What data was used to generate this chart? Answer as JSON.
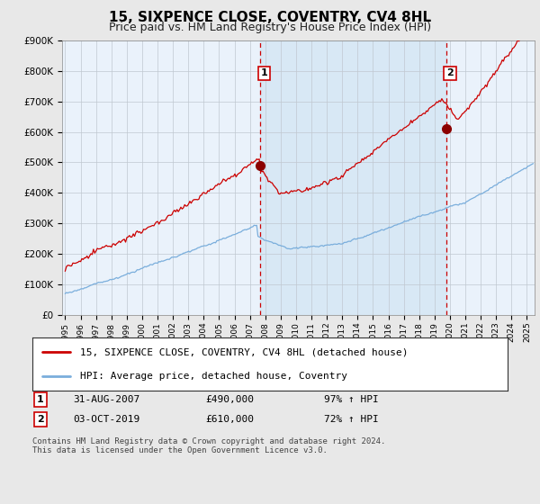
{
  "title": "15, SIXPENCE CLOSE, COVENTRY, CV4 8HL",
  "subtitle": "Price paid vs. HM Land Registry's House Price Index (HPI)",
  "ylabel_ticks": [
    "£0",
    "£100K",
    "£200K",
    "£300K",
    "£400K",
    "£500K",
    "£600K",
    "£700K",
    "£800K",
    "£900K"
  ],
  "ylim": [
    0,
    900000
  ],
  "xlim_start": 1994.8,
  "xlim_end": 2025.5,
  "line1_color": "#cc0000",
  "line2_color": "#7aaedc",
  "shade_color": "#ddeeff",
  "marker1_date": 2007.67,
  "marker1_value": 490000,
  "marker2_date": 2019.75,
  "marker2_value": 610000,
  "vline_color": "#cc0000",
  "legend_line1": "15, SIXPENCE CLOSE, COVENTRY, CV4 8HL (detached house)",
  "legend_line2": "HPI: Average price, detached house, Coventry",
  "table_row1_num": "1",
  "table_row1_date": "31-AUG-2007",
  "table_row1_price": "£490,000",
  "table_row1_hpi": "97% ↑ HPI",
  "table_row2_num": "2",
  "table_row2_date": "03-OCT-2019",
  "table_row2_price": "£610,000",
  "table_row2_hpi": "72% ↑ HPI",
  "footnote": "Contains HM Land Registry data © Crown copyright and database right 2024.\nThis data is licensed under the Open Government Licence v3.0.",
  "bg_color": "#e8e8e8",
  "plot_bg_color": "#eaf2fb",
  "grid_color": "#c0c8d0",
  "title_fontsize": 11,
  "subtitle_fontsize": 9
}
